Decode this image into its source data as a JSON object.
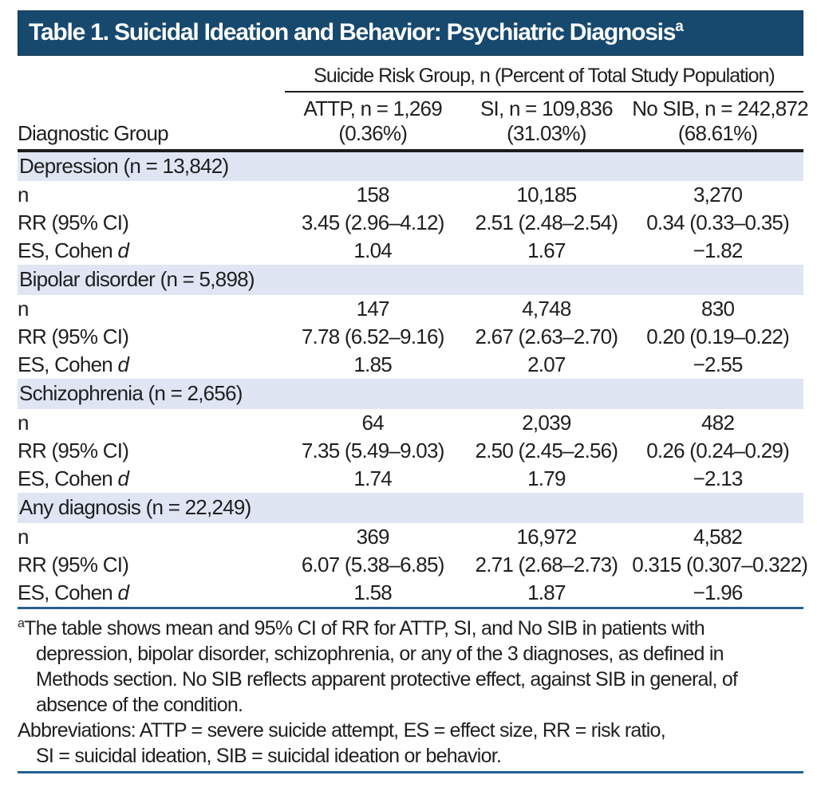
{
  "title": {
    "text": "Table 1. Suicidal Ideation and Behavior: Psychiatric Diagnosis",
    "marker": "a"
  },
  "colors": {
    "title_bar_bg": "#17496f",
    "title_text": "#ffffff",
    "section_band_bg": "#dfe5f3",
    "black_rule": "#1d1d1b",
    "blue_rule": "#25618f",
    "body_text": "#1f1f1f"
  },
  "table": {
    "spanner": "Suicide Risk Group, n (Percent of Total Study Population)",
    "row_label_header": "Diagnostic Group",
    "columns": [
      {
        "line1": "ATTP, n = 1,269",
        "line2": "(0.36%)"
      },
      {
        "line1": "SI, n = 109,836",
        "line2": "(31.03%)"
      },
      {
        "line1": "No SIB, n = 242,872",
        "line2": "(68.61%)"
      }
    ],
    "row_labels": {
      "n": "n",
      "rr": "RR (95% CI)",
      "es_prefix": "ES, Cohen ",
      "es_italic": "d"
    },
    "sections": [
      {
        "header": "Depression (n = 13,842)",
        "n": [
          "158",
          "10,185",
          "3,270"
        ],
        "rr": [
          "3.45 (2.96–4.12)",
          "2.51 (2.48–2.54)",
          "0.34 (0.33–0.35)"
        ],
        "es": [
          "1.04",
          "1.67",
          "−1.82"
        ]
      },
      {
        "header": "Bipolar disorder (n = 5,898)",
        "n": [
          "147",
          "4,748",
          "830"
        ],
        "rr": [
          "7.78 (6.52–9.16)",
          "2.67 (2.63–2.70)",
          "0.20 (0.19–0.22)"
        ],
        "es": [
          "1.85",
          "2.07",
          "−2.55"
        ]
      },
      {
        "header": "Schizophrenia (n = 2,656)",
        "n": [
          "64",
          "2,039",
          "482"
        ],
        "rr": [
          "7.35 (5.49–9.03)",
          "2.50 (2.45–2.56)",
          "0.26 (0.24–0.29)"
        ],
        "es": [
          "1.74",
          "1.79",
          "−2.13"
        ]
      },
      {
        "header": "Any diagnosis (n = 22,249)",
        "n": [
          "369",
          "16,972",
          "4,582"
        ],
        "rr": [
          "6.07 (5.38–6.85)",
          "2.71 (2.68–2.73)",
          "0.315 (0.307–0.322)"
        ],
        "es": [
          "1.58",
          "1.87",
          "−1.96"
        ]
      }
    ]
  },
  "footnotes": {
    "marker": "a",
    "note_lines": [
      "The table shows mean and 95% CI of RR for ATTP, SI, and No SIB in patients with",
      "depression, bipolar disorder, schizophrenia, or any of the 3 diagnoses, as defined in",
      "Methods section. No SIB reflects apparent protective effect, against SIB in general, of",
      "absence of the condition."
    ],
    "abbrev_lines": [
      "Abbreviations: ATTP = severe suicide attempt, ES = effect size, RR = risk ratio,",
      "SI = suicidal ideation, SIB = suicidal ideation or behavior."
    ]
  }
}
